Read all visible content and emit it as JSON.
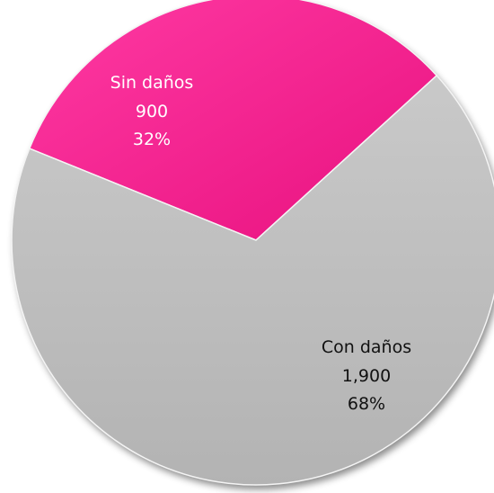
{
  "chart_data": {
    "type": "pie",
    "title": "",
    "slices": [
      {
        "label": "Sin daños",
        "value": 900,
        "value_text": "900",
        "percent_text": "32%",
        "color": "#f21e8f",
        "label_color": "#ffffff"
      },
      {
        "label": "Con daños",
        "value": 1900,
        "value_text": "1,900",
        "percent_text": "68%",
        "color": "#bdbdbd",
        "label_color": "#111111"
      }
    ],
    "total": 2800,
    "legend": false
  }
}
